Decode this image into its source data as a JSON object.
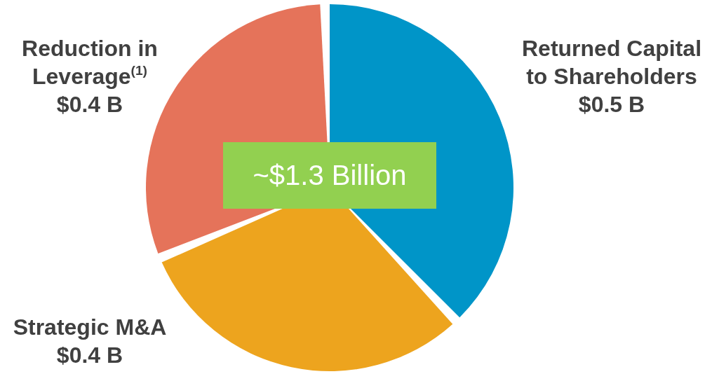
{
  "chart_data": {
    "type": "pie",
    "categories": [
      "Returned Capital to Shareholders",
      "Strategic M&A",
      "Reduction in Leverage$^{(1)}$"
    ],
    "values": [
      0.5,
      0.4,
      0.4
    ],
    "colors": [
      "#0095c8",
      "#eda41e",
      "#e5735a"
    ],
    "value_labels": [
      "$0.5 B",
      "$0.4 B",
      "$0.4 B"
    ],
    "annotations": [
      "~$1.3 Billion"
    ]
  }
}
